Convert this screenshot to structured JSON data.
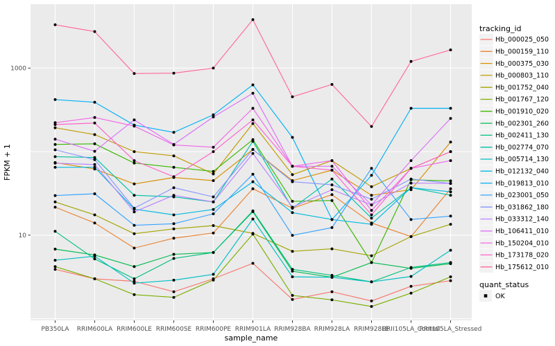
{
  "chart_data": {
    "type": "line",
    "title": "",
    "xlabel": "sample_name",
    "ylabel": "FPKM + 1",
    "x_categories": [
      "PB350LA",
      "RRIM600LA",
      "RRIM600LE",
      "RRIM600SE",
      "RRIM600PE",
      "RRIM901LA",
      "RRIM928BA",
      "RRIM928LA",
      "RRIM928LE",
      "RRII105LA_Control",
      "RRII105LA_Stressed"
    ],
    "y_axis": {
      "scale": "log10",
      "tick_values": [
        10,
        1000
      ],
      "tick_labels": [
        "10",
        "1000"
      ],
      "gridline_values": [
        1,
        10,
        100,
        1000
      ],
      "range_approx": [
        1,
        5500
      ]
    },
    "legend": {
      "title": "tracking_id",
      "position": "right"
    },
    "quant_legend": {
      "title": "quant_status",
      "items": [
        {
          "label": "OK",
          "marker": "black-square"
        }
      ]
    },
    "colors": {
      "panel_bg": "#EBEBEB",
      "gridline": "#FFFFFF",
      "tick_mark": "#333333",
      "tick_text": "#4D4D4D",
      "point": "#000000",
      "legend_key_bg": "#F2F2F2"
    },
    "series": [
      {
        "name": "Hb_000025_050",
        "color": "#F8766D",
        "values": [
          3.9,
          3.0,
          2.8,
          2.1,
          3.0,
          4.6,
          1.7,
          2.1,
          1.63,
          2.44,
          2.85
        ]
      },
      {
        "name": "Hb_000159_110",
        "color": "#EA8331",
        "values": [
          21.6,
          14,
          7.0,
          9.2,
          10.6,
          36,
          21,
          30.5,
          14,
          9.6,
          36
        ]
      },
      {
        "name": "Hb_000375_030",
        "color": "#D89000",
        "values": [
          74,
          62,
          41,
          49,
          45,
          106,
          45,
          60,
          30,
          35,
          130
        ]
      },
      {
        "name": "Hb_000803_110",
        "color": "#C09B00",
        "values": [
          193,
          160,
          100,
          89,
          54,
          217,
          53,
          78,
          38,
          63,
          100
        ]
      },
      {
        "name": "Hb_001752_040",
        "color": "#A3A500",
        "values": [
          25,
          17.5,
          10.4,
          11.9,
          13,
          10.5,
          6.4,
          6.85,
          5.66,
          9.6,
          13.5
        ]
      },
      {
        "name": "Hb_001767_120",
        "color": "#7CAE00",
        "values": [
          4.2,
          3.0,
          1.94,
          1.8,
          2.9,
          10.3,
          1.9,
          1.68,
          1.4,
          2.02,
          3.17
        ]
      },
      {
        "name": "Hb_001910_020",
        "color": "#39B600",
        "values": [
          122,
          124,
          73,
          64.8,
          58,
          139,
          25.4,
          26,
          4.7,
          46,
          44.6
        ]
      },
      {
        "name": "Hb_002301_260",
        "color": "#00BB4E",
        "values": [
          6.8,
          5.8,
          4.2,
          5.9,
          6.2,
          19.1,
          3.7,
          3.13,
          4.7,
          4.0,
          4.56
        ]
      },
      {
        "name": "Hb_002411_130",
        "color": "#00BF7D",
        "values": [
          11.1,
          5.2,
          3.0,
          5.26,
          6.2,
          19.5,
          3.9,
          3.3,
          2.76,
          4.1,
          4.7
        ]
      },
      {
        "name": "Hb_002774_070",
        "color": "#00C1A7",
        "values": [
          87,
          85,
          30,
          28.7,
          25,
          133,
          21,
          47,
          16,
          37,
          30
        ]
      },
      {
        "name": "Hb_005714_130",
        "color": "#00BFC4",
        "values": [
          5.0,
          5.6,
          2.66,
          2.89,
          3.4,
          15.6,
          3.17,
          3.13,
          2.76,
          3.2,
          6.6
        ]
      },
      {
        "name": "Hb_012132_040",
        "color": "#00BAE0",
        "values": [
          64.8,
          65,
          20.5,
          17.5,
          20.3,
          43.6,
          18.6,
          15.4,
          13.5,
          37,
          33
        ]
      },
      {
        "name": "Hb_019813_010",
        "color": "#00B0F6",
        "values": [
          420,
          390,
          208,
          170,
          276,
          630,
          148,
          15.4,
          52,
          330,
          330
        ]
      },
      {
        "name": "Hb_023001_050",
        "color": "#35A2FF",
        "values": [
          29.8,
          31.3,
          13.1,
          13.7,
          18,
          53.6,
          9.95,
          12.3,
          63,
          15.4,
          16.9
        ]
      },
      {
        "name": "Hb_031862_180",
        "color": "#8894FF",
        "values": [
          105,
          80,
          21,
          37,
          28.7,
          106,
          43.6,
          40,
          26.9,
          47,
          41.6
        ]
      },
      {
        "name": "Hb_033312_140",
        "color": "#B983FF",
        "values": [
          72.7,
          70,
          19,
          30,
          25,
          95,
          21.6,
          35,
          23,
          42,
          41.6
        ]
      },
      {
        "name": "Hb_106411_010",
        "color": "#DC71FA",
        "values": [
          141,
          101,
          240,
          122,
          260,
          500,
          66.7,
          66.7,
          23,
          78,
          250
        ]
      },
      {
        "name": "Hb_150204_010",
        "color": "#F166E8",
        "values": [
          222,
          256,
          202,
          120,
          113,
          330,
          66.7,
          78,
          19.8,
          63,
          78
        ]
      },
      {
        "name": "Hb_173178_020",
        "color": "#FF61CC",
        "values": [
          211,
          220,
          78,
          50,
          100,
          240,
          66.7,
          60,
          17.5,
          63,
          100
        ]
      },
      {
        "name": "Hb_175612_010",
        "color": "#FF689F",
        "values": [
          3300,
          2740,
          860,
          870,
          1000,
          3800,
          453,
          638,
          200,
          1200,
          1650
        ]
      }
    ]
  }
}
